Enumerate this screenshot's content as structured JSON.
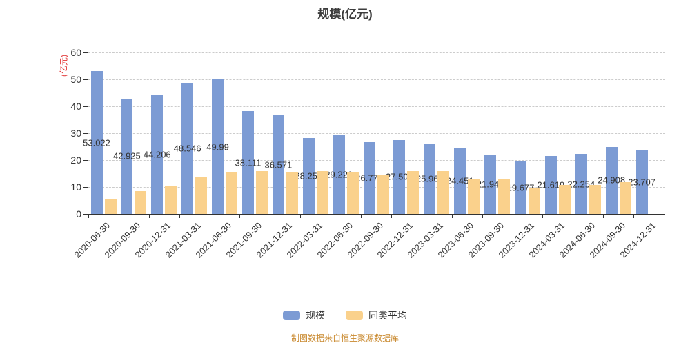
{
  "title": "规模(亿元)",
  "y_axis_unit": "(亿元)",
  "footer": "制图数据来自恒生聚源数据库",
  "legend": [
    {
      "label": "规模",
      "color": "#7C9BD4"
    },
    {
      "label": "同类平均",
      "color": "#FAD18C"
    }
  ],
  "colors": {
    "bar_blue": "#7C9BD4",
    "bar_orange": "#FAD18C",
    "grid": "#cccccc",
    "axis": "#333333",
    "text": "#333333",
    "unit_label": "#e23434",
    "footer": "#c9892e"
  },
  "chart_data": {
    "type": "bar",
    "title": "规模(亿元)",
    "ylabel": "(亿元)",
    "ylim": [
      0,
      60
    ],
    "yticks": [
      0,
      10,
      20,
      30,
      40,
      50,
      60
    ],
    "grid": "horizontal-dashed",
    "legend_position": "bottom",
    "xlabel_rotation": -45,
    "categories": [
      "2020-06-30",
      "2020-09-30",
      "2020-12-31",
      "2021-03-31",
      "2021-06-30",
      "2021-09-30",
      "2021-12-31",
      "2022-03-31",
      "2022-06-30",
      "2022-09-30",
      "2022-12-31",
      "2023-03-31",
      "2023-06-30",
      "2023-09-30",
      "2023-12-31",
      "2024-03-31",
      "2024-06-30",
      "2024-09-30",
      "2024-12-31"
    ],
    "series": [
      {
        "name": "规模",
        "color": "#7C9BD4",
        "labels_shown": true,
        "values": [
          53.022,
          42.925,
          44.206,
          48.546,
          49.99,
          38.111,
          36.571,
          28.253,
          29.226,
          26.775,
          27.506,
          25.968,
          24.451,
          21.948,
          19.677,
          21.619,
          22.254,
          24.908,
          23.707
        ]
      },
      {
        "name": "同类平均",
        "color": "#FAD18C",
        "labels_shown": false,
        "values": [
          5.3,
          8.4,
          10.2,
          13.9,
          15.5,
          16.0,
          15.4,
          15.8,
          15.6,
          14.6,
          16.0,
          16.0,
          12.9,
          12.9,
          9.7,
          10.9,
          10.8,
          11.7,
          null
        ]
      }
    ]
  }
}
